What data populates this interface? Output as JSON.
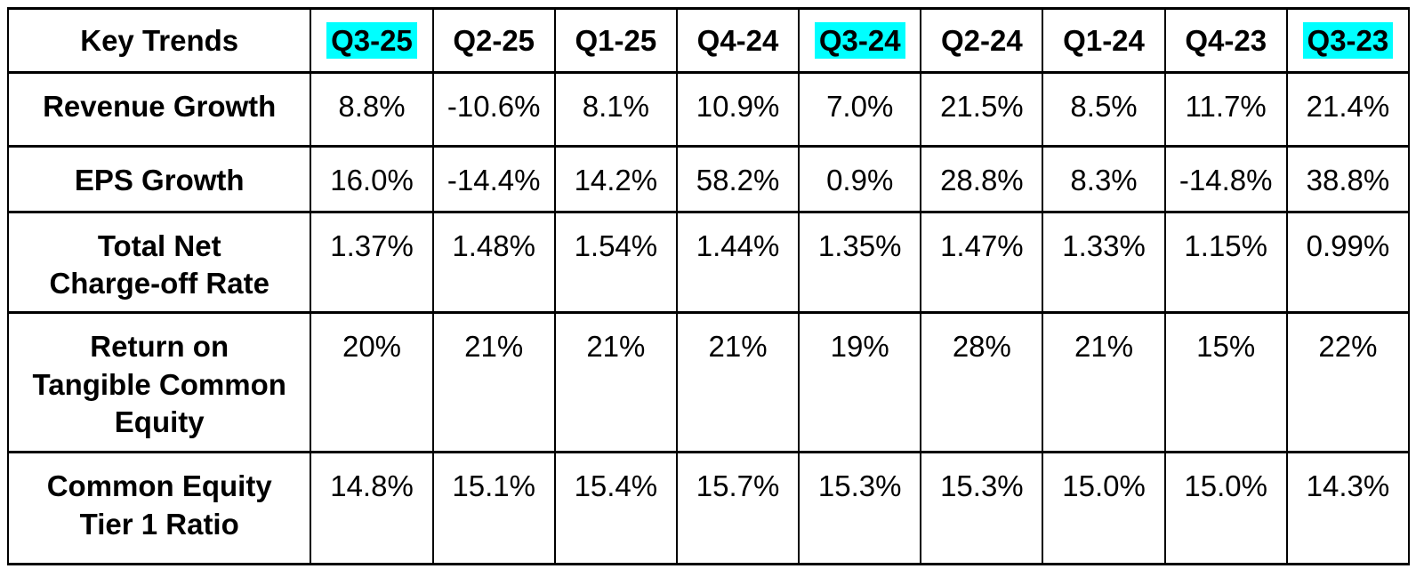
{
  "colors": {
    "highlight": "#00FFFF",
    "border": "#000000",
    "text": "#000000",
    "background": "#FFFFFF"
  },
  "table": {
    "header": {
      "title": "Key Trends",
      "columns": [
        {
          "label": "Q3-25",
          "highlighted": true
        },
        {
          "label": "Q2-25",
          "highlighted": false
        },
        {
          "label": "Q1-25",
          "highlighted": false
        },
        {
          "label": "Q4-24",
          "highlighted": false
        },
        {
          "label": "Q3-24",
          "highlighted": true
        },
        {
          "label": "Q2-24",
          "highlighted": false
        },
        {
          "label": "Q1-24",
          "highlighted": false
        },
        {
          "label": "Q4-23",
          "highlighted": false
        },
        {
          "label": "Q3-23",
          "highlighted": true
        }
      ]
    },
    "rows": [
      {
        "label": "Revenue Growth",
        "values": [
          "8.8%",
          "-10.6%",
          "8.1%",
          "10.9%",
          "7.0%",
          "21.5%",
          "8.5%",
          "11.7%",
          "21.4%"
        ]
      },
      {
        "label": "EPS Growth",
        "values": [
          "16.0%",
          "-14.4%",
          "14.2%",
          "58.2%",
          "0.9%",
          "28.8%",
          "8.3%",
          "-14.8%",
          "38.8%"
        ]
      },
      {
        "label": "Total Net\nCharge-off Rate",
        "values": [
          "1.37%",
          "1.48%",
          "1.54%",
          "1.44%",
          "1.35%",
          "1.47%",
          "1.33%",
          "1.15%",
          "0.99%"
        ]
      },
      {
        "label": "Return on\nTangible Common\nEquity",
        "values": [
          "20%",
          "21%",
          "21%",
          "21%",
          "19%",
          "28%",
          "21%",
          "15%",
          "22%"
        ]
      },
      {
        "label": "Common Equity\nTier 1 Ratio",
        "values": [
          "14.8%",
          "15.1%",
          "15.4%",
          "15.7%",
          "15.3%",
          "15.3%",
          "15.0%",
          "15.0%",
          "14.3%"
        ]
      }
    ]
  },
  "chart_data": {
    "type": "table",
    "title": "Key Trends",
    "categories": [
      "Q3-25",
      "Q2-25",
      "Q1-25",
      "Q4-24",
      "Q3-24",
      "Q2-24",
      "Q1-24",
      "Q4-23",
      "Q3-23"
    ],
    "highlighted_columns": [
      "Q3-25",
      "Q3-24",
      "Q3-23"
    ],
    "series": [
      {
        "name": "Revenue Growth",
        "unit": "%",
        "values": [
          8.8,
          -10.6,
          8.1,
          10.9,
          7.0,
          21.5,
          8.5,
          11.7,
          21.4
        ]
      },
      {
        "name": "EPS Growth",
        "unit": "%",
        "values": [
          16.0,
          -14.4,
          14.2,
          58.2,
          0.9,
          28.8,
          8.3,
          -14.8,
          38.8
        ]
      },
      {
        "name": "Total Net Charge-off Rate",
        "unit": "%",
        "values": [
          1.37,
          1.48,
          1.54,
          1.44,
          1.35,
          1.47,
          1.33,
          1.15,
          0.99
        ]
      },
      {
        "name": "Return on Tangible Common Equity",
        "unit": "%",
        "values": [
          20,
          21,
          21,
          21,
          19,
          28,
          21,
          15,
          22
        ]
      },
      {
        "name": "Common Equity Tier 1 Ratio",
        "unit": "%",
        "values": [
          14.8,
          15.1,
          15.4,
          15.7,
          15.3,
          15.3,
          15.0,
          15.0,
          14.3
        ]
      }
    ]
  }
}
